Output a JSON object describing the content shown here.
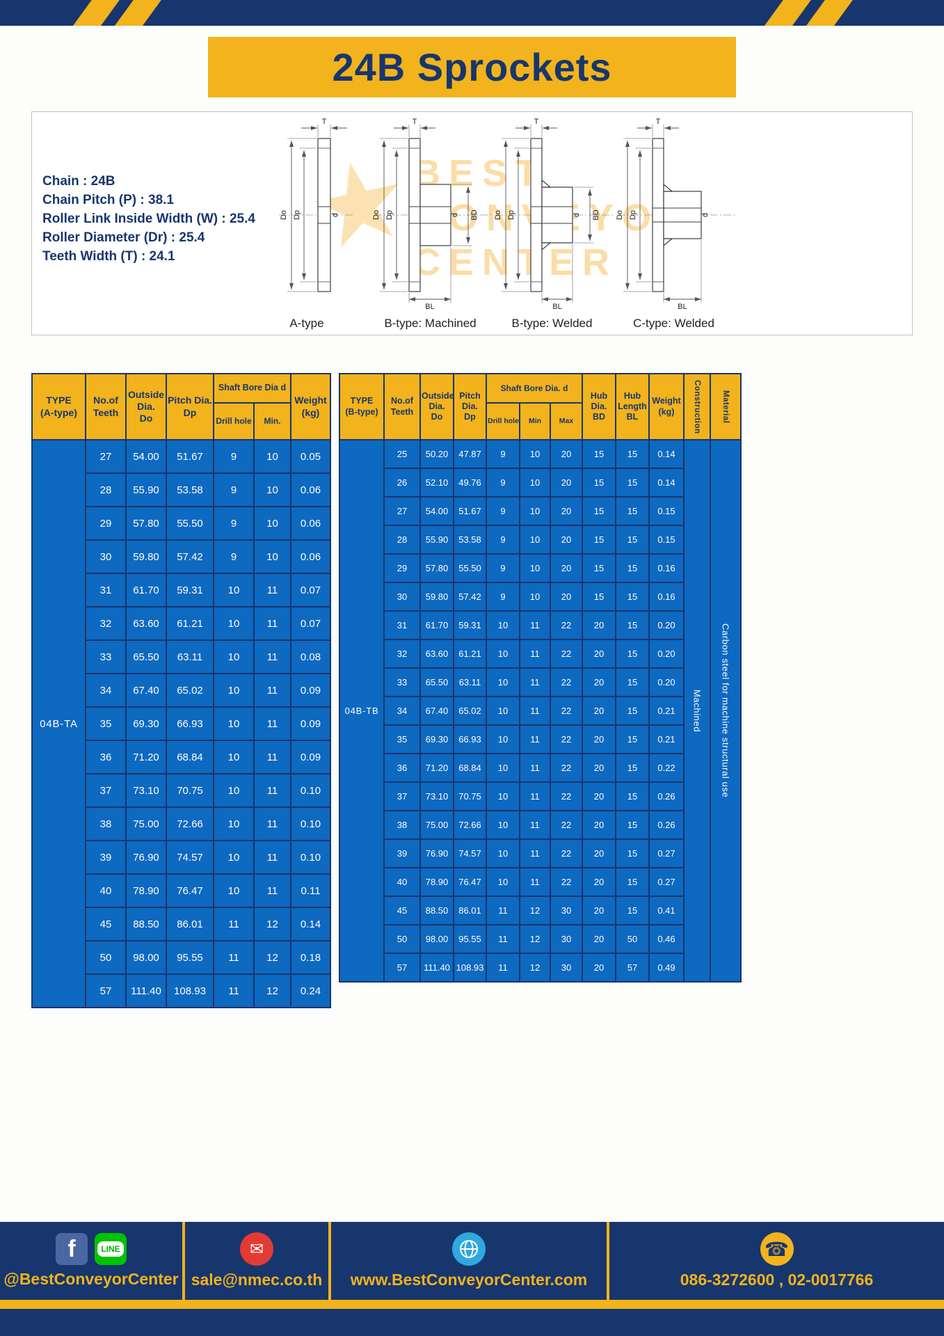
{
  "header": {
    "title": "24B Sprockets"
  },
  "colors": {
    "navy": "#17366e",
    "yellow": "#f2b31c",
    "table_blue": "#0e69c0"
  },
  "specs": {
    "lines": [
      "Chain : 24B",
      "Chain Pitch (P) : 38.1",
      "Roller Link Inside Width (W) : 25.4",
      "Roller Diameter (Dr) : 25.4",
      "Teeth Width (T) : 24.1"
    ]
  },
  "diagrams": {
    "watermark_lines": [
      "BEST",
      "CONVEYOR",
      "CENTER"
    ],
    "items": [
      {
        "label": "A-type"
      },
      {
        "label": "B-type: Machined"
      },
      {
        "label": "B-type: Welded"
      },
      {
        "label": "C-type: Welded"
      }
    ],
    "dims": {
      "teeth_width": "T",
      "outside": "Do",
      "pitch": "Dp",
      "bore": "d",
      "hub_dia": "BD",
      "hub_length": "BL"
    }
  },
  "table_a": {
    "type_label": "04B-TA",
    "headers": {
      "type": "TYPE\n(A-type)",
      "teeth": "No.of\nTeeth",
      "outside": "Outside\nDia.\nDo",
      "pitch": "Pitch Dia.\nDp",
      "shaft_bore": "Shaft Bore Dia d",
      "drill": "Drill hole",
      "min": "Min.",
      "weight": "Weight\n(kg)"
    },
    "rows": [
      [
        27,
        "54.00",
        "51.67",
        9,
        10,
        "0.05"
      ],
      [
        28,
        "55.90",
        "53.58",
        9,
        10,
        "0.06"
      ],
      [
        29,
        "57.80",
        "55.50",
        9,
        10,
        "0.06"
      ],
      [
        30,
        "59.80",
        "57.42",
        9,
        10,
        "0.06"
      ],
      [
        31,
        "61.70",
        "59.31",
        10,
        11,
        "0.07"
      ],
      [
        32,
        "63.60",
        "61.21",
        10,
        11,
        "0.07"
      ],
      [
        33,
        "65.50",
        "63.11",
        10,
        11,
        "0.08"
      ],
      [
        34,
        "67.40",
        "65.02",
        10,
        11,
        "0.09"
      ],
      [
        35,
        "69.30",
        "66.93",
        10,
        11,
        "0.09"
      ],
      [
        36,
        "71.20",
        "68.84",
        10,
        11,
        "0.09"
      ],
      [
        37,
        "73.10",
        "70.75",
        10,
        11,
        "0.10"
      ],
      [
        38,
        "75.00",
        "72.66",
        10,
        11,
        "0.10"
      ],
      [
        39,
        "76.90",
        "74.57",
        10,
        11,
        "0.10"
      ],
      [
        40,
        "78.90",
        "76.47",
        10,
        11,
        "0.11"
      ],
      [
        45,
        "88.50",
        "86.01",
        11,
        12,
        "0.14"
      ],
      [
        50,
        "98.00",
        "95.55",
        11,
        12,
        "0.18"
      ],
      [
        57,
        "111.40",
        "108.93",
        11,
        12,
        "0.24"
      ]
    ]
  },
  "table_b": {
    "type_label": "04B-TB",
    "construction_value": "Machined",
    "material_value": "Carbon steel for machine structural use",
    "headers": {
      "type": "TYPE\n(B-type)",
      "teeth": "No.of\nTeeth",
      "outside": "Outside\nDia.\nDo",
      "pitch": "Pitch\nDia.\nDp",
      "shaft_bore": "Shaft Bore Dia. d",
      "drill": "Drill hole",
      "min": "Min",
      "max": "Max",
      "hub_dia": "Hub\nDia.\nBD",
      "hub_len": "Hub\nLength\nBL",
      "weight": "Weight\n(kg)",
      "construction": "Construction",
      "material": "Material"
    },
    "rows": [
      [
        25,
        "50.20",
        "47.87",
        9,
        10,
        20,
        15,
        15,
        "0.14"
      ],
      [
        26,
        "52.10",
        "49.76",
        9,
        10,
        20,
        15,
        15,
        "0.14"
      ],
      [
        27,
        "54.00",
        "51.67",
        9,
        10,
        20,
        15,
        15,
        "0.15"
      ],
      [
        28,
        "55.90",
        "53.58",
        9,
        10,
        20,
        15,
        15,
        "0.15"
      ],
      [
        29,
        "57.80",
        "55.50",
        9,
        10,
        20,
        15,
        15,
        "0.16"
      ],
      [
        30,
        "59.80",
        "57.42",
        9,
        10,
        20,
        15,
        15,
        "0.16"
      ],
      [
        31,
        "61.70",
        "59.31",
        10,
        11,
        22,
        20,
        15,
        "0.20"
      ],
      [
        32,
        "63.60",
        "61.21",
        10,
        11,
        22,
        20,
        15,
        "0.20"
      ],
      [
        33,
        "65.50",
        "63.11",
        10,
        11,
        22,
        20,
        15,
        "0.20"
      ],
      [
        34,
        "67.40",
        "65.02",
        10,
        11,
        22,
        20,
        15,
        "0.21"
      ],
      [
        35,
        "69.30",
        "66.93",
        10,
        11,
        22,
        20,
        15,
        "0.21"
      ],
      [
        36,
        "71.20",
        "68.84",
        10,
        11,
        22,
        20,
        15,
        "0.22"
      ],
      [
        37,
        "73.10",
        "70.75",
        10,
        11,
        22,
        20,
        15,
        "0.26"
      ],
      [
        38,
        "75.00",
        "72.66",
        10,
        11,
        22,
        20,
        15,
        "0.26"
      ],
      [
        39,
        "76.90",
        "74.57",
        10,
        11,
        22,
        20,
        15,
        "0.27"
      ],
      [
        40,
        "78.90",
        "76.47",
        10,
        11,
        22,
        20,
        15,
        "0.27"
      ],
      [
        45,
        "88.50",
        "86.01",
        11,
        12,
        30,
        20,
        15,
        "0.41"
      ],
      [
        50,
        "98.00",
        "95.55",
        11,
        12,
        30,
        20,
        50,
        "0.46"
      ],
      [
        57,
        "111.40",
        "108.93",
        11,
        12,
        30,
        20,
        57,
        "0.49"
      ]
    ]
  },
  "footer": {
    "facebook_glyph": "f",
    "line_text": "LINE",
    "items": [
      {
        "label": "@BestConveyorCenter",
        "icons": [
          "facebook-icon",
          "line-icon"
        ]
      },
      {
        "label": "sale@nmec.co.th",
        "icons": [
          "email-icon"
        ]
      },
      {
        "label": "www.BestConveyorCenter.com",
        "icons": [
          "globe-icon"
        ]
      },
      {
        "label": "086-3272600 , 02-0017766",
        "icons": [
          "phone-icon"
        ]
      }
    ]
  }
}
